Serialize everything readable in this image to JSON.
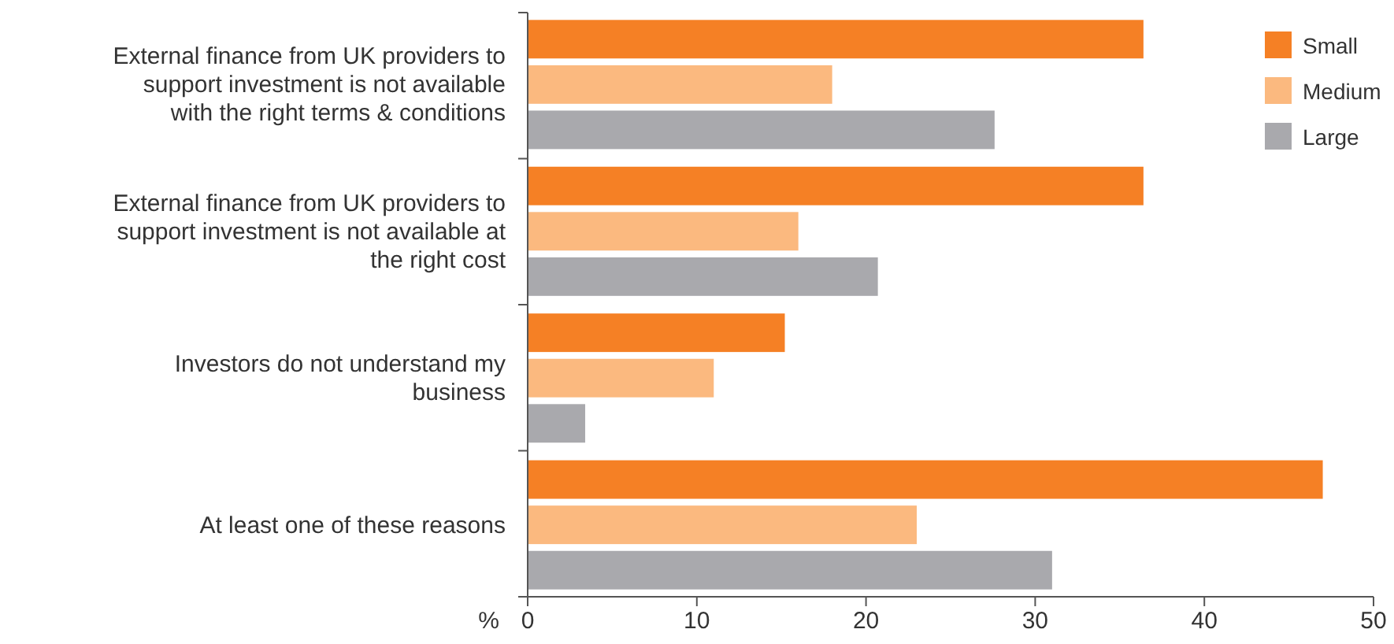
{
  "chart_data": {
    "type": "bar",
    "orientation": "horizontal",
    "categories": [
      "External finance from UK providers to support investment is not available with the right terms & conditions",
      "External finance from UK providers to support investment is not available at the right cost",
      "Investors do not understand my business",
      "At least one of these reasons"
    ],
    "series": [
      {
        "name": "Small",
        "color": "#f58025",
        "values": [
          36.4,
          36.4,
          15.2,
          47.0
        ]
      },
      {
        "name": "Medium",
        "color": "#fbb97f",
        "values": [
          18.0,
          16.0,
          11.0,
          23.0
        ]
      },
      {
        "name": "Large",
        "color": "#a9a9ad",
        "values": [
          27.6,
          20.7,
          3.4,
          31.0
        ]
      }
    ],
    "xlabel": "%",
    "xlim": [
      0,
      50
    ],
    "xticks": [
      0,
      10,
      20,
      30,
      40,
      50
    ],
    "grid": false,
    "legend": "top right"
  }
}
